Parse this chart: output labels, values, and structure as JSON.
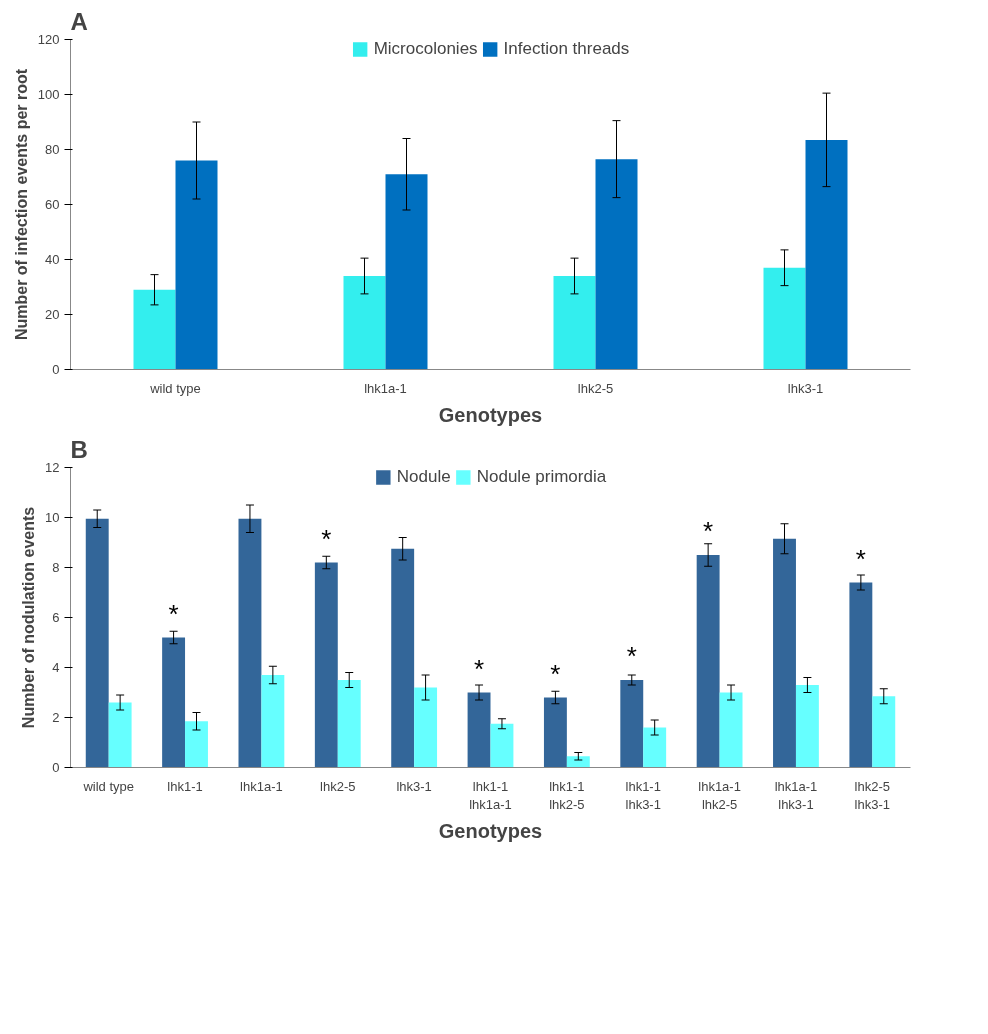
{
  "chart_data": [
    {
      "type": "bar",
      "title": "A",
      "xlabel": "Genotypes",
      "ylabel": "Number of infection events per root",
      "categories": [
        "wild type",
        "lhk1a-1",
        "lhk2-5",
        "lhk3-1"
      ],
      "ylim": [
        0,
        120
      ],
      "yticks": [
        0,
        20,
        40,
        60,
        80,
        100,
        120
      ],
      "grid": false,
      "legend": "top",
      "series": [
        {
          "name": "Microcolonies",
          "color": "#33eeee",
          "values": [
            29,
            34,
            34,
            37
          ],
          "errors": [
            5.5,
            6.5,
            6.5,
            6.5
          ]
        },
        {
          "name": "Infection threads",
          "color": "#0070c0",
          "values": [
            76,
            71,
            76.5,
            83.5
          ],
          "errors": [
            14,
            13,
            14,
            17
          ]
        }
      ]
    },
    {
      "type": "bar",
      "title": "B",
      "xlabel": "Genotypes",
      "ylabel": "Number of nodulation events",
      "categories": [
        "wild type",
        "lhk1-1",
        "lhk1a-1",
        "lhk2-5",
        "lhk3-1",
        "lhk1-1\nlhk1a-1",
        "lhk1-1\nlhk2-5",
        "lhk1-1\nlhk3-1",
        "lhk1a-1\nlhk2-5",
        "lhk1a-1\nlhk3-1",
        "lhk2-5\nlhk3-1"
      ],
      "ylim": [
        0,
        12
      ],
      "yticks": [
        0,
        2,
        4,
        6,
        8,
        10,
        12
      ],
      "grid": false,
      "legend": "top",
      "series": [
        {
          "name": "Nodule",
          "color": "#336699",
          "values": [
            9.95,
            5.2,
            9.95,
            8.2,
            8.75,
            3.0,
            2.8,
            3.5,
            8.5,
            9.15,
            7.4
          ],
          "errors": [
            0.35,
            0.25,
            0.55,
            0.25,
            0.45,
            0.3,
            0.25,
            0.2,
            0.45,
            0.6,
            0.3
          ]
        },
        {
          "name": "Nodule primordia",
          "color": "#66ffff",
          "values": [
            2.6,
            1.85,
            3.7,
            3.5,
            3.2,
            1.75,
            0.45,
            1.6,
            3.0,
            3.3,
            2.85
          ],
          "errors": [
            0.3,
            0.35,
            0.35,
            0.3,
            0.5,
            0.2,
            0.15,
            0.3,
            0.3,
            0.3,
            0.3
          ]
        }
      ],
      "annotations": [
        {
          "text": "*",
          "x": "lhk1-1",
          "y": 5.2
        },
        {
          "text": "*",
          "x": "lhk2-5",
          "y": 8.2
        },
        {
          "text": "*",
          "x": "lhk1-1\nlhk1a-1",
          "y": 3.0
        },
        {
          "text": "*",
          "x": "lhk1-1\nlhk2-5",
          "y": 2.8
        },
        {
          "text": "*",
          "x": "lhk1-1\nlhk3-1",
          "y": 3.5
        },
        {
          "text": "*",
          "x": "lhk1a-1\nlhk2-5",
          "y": 8.5
        },
        {
          "text": "*",
          "x": "lhk2-5\nlhk3-1",
          "y": 7.4
        }
      ]
    }
  ]
}
